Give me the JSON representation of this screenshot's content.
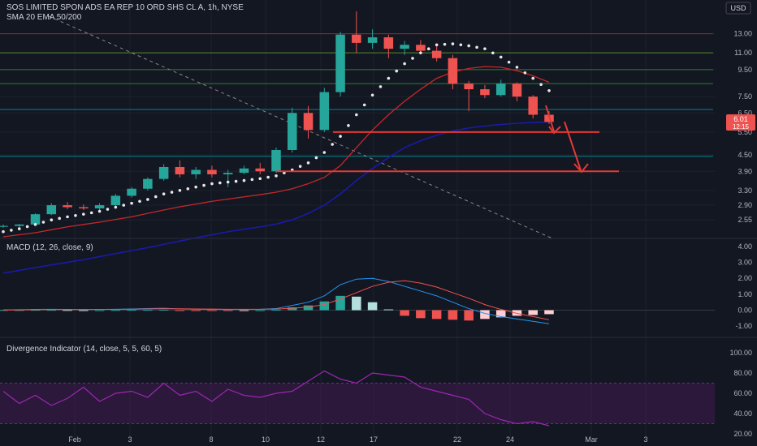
{
  "header": {
    "symbol_title": "SOS LIMITED SPON ADS EA REP 10 ORD SHS CL A, 1h, NYSE",
    "indicator_ma": "SMA 20 EMA 50/200",
    "currency": "USD"
  },
  "colors": {
    "background": "#131722",
    "up": "#26a69a",
    "down": "#ef5350",
    "sma20": "#e8e8e8",
    "ema50": "#c62828",
    "ema200": "#1a1aa8",
    "macd_line": "#2196f3",
    "signal_line": "#ef5350",
    "div_line": "#9c27b0",
    "div_band": "#4a1a5c",
    "grid": "#1e222d",
    "axis_text": "#b2b5be"
  },
  "price_badge": {
    "value": "6.01",
    "time": "12:15"
  },
  "chart_data": [
    {
      "type": "candlestick",
      "title": "SOS LIMITED SPON ADS EA REP 10 ORD SHS CL A, 1h, NYSE",
      "y_axis_ticks": [
        "13.00",
        "11.00",
        "9.50",
        "7.50",
        "6.50",
        "5.50",
        "4.50",
        "3.90",
        "3.30",
        "2.90",
        "2.55"
      ],
      "x_axis_ticks": [
        "Feb",
        "3",
        "8",
        "10",
        "12",
        "17",
        "22",
        "24",
        "Mar",
        "3"
      ],
      "ohlc_approx": [
        {
          "o": 2.4,
          "h": 2.45,
          "l": 2.38,
          "c": 2.42
        },
        {
          "o": 2.42,
          "h": 2.46,
          "l": 2.4,
          "c": 2.45
        },
        {
          "o": 2.45,
          "h": 2.7,
          "l": 2.44,
          "c": 2.68
        },
        {
          "o": 2.68,
          "h": 2.95,
          "l": 2.66,
          "c": 2.9
        },
        {
          "o": 2.9,
          "h": 2.98,
          "l": 2.8,
          "c": 2.85
        },
        {
          "o": 2.85,
          "h": 2.92,
          "l": 2.78,
          "c": 2.82
        },
        {
          "o": 2.82,
          "h": 2.95,
          "l": 2.75,
          "c": 2.9
        },
        {
          "o": 2.9,
          "h": 3.2,
          "l": 2.88,
          "c": 3.15
        },
        {
          "o": 3.15,
          "h": 3.4,
          "l": 3.1,
          "c": 3.35
        },
        {
          "o": 3.35,
          "h": 3.7,
          "l": 3.3,
          "c": 3.65
        },
        {
          "o": 3.65,
          "h": 4.15,
          "l": 3.6,
          "c": 4.05
        },
        {
          "o": 4.05,
          "h": 4.3,
          "l": 3.7,
          "c": 3.8
        },
        {
          "o": 3.8,
          "h": 4.05,
          "l": 3.65,
          "c": 3.95
        },
        {
          "o": 3.95,
          "h": 4.1,
          "l": 3.7,
          "c": 3.8
        },
        {
          "o": 3.8,
          "h": 3.95,
          "l": 3.4,
          "c": 3.85
        },
        {
          "o": 3.85,
          "h": 4.1,
          "l": 3.8,
          "c": 4.0
        },
        {
          "o": 4.0,
          "h": 4.2,
          "l": 3.8,
          "c": 3.9
        },
        {
          "o": 3.9,
          "h": 4.8,
          "l": 3.85,
          "c": 4.7
        },
        {
          "o": 4.7,
          "h": 6.8,
          "l": 4.6,
          "c": 6.5
        },
        {
          "o": 6.5,
          "h": 6.9,
          "l": 5.2,
          "c": 5.6
        },
        {
          "o": 5.6,
          "h": 8.1,
          "l": 5.5,
          "c": 7.8
        },
        {
          "o": 7.8,
          "h": 13.2,
          "l": 7.5,
          "c": 12.9
        },
        {
          "o": 12.9,
          "h": 15.8,
          "l": 11.0,
          "c": 12.0
        },
        {
          "o": 12.0,
          "h": 13.5,
          "l": 11.4,
          "c": 12.6
        },
        {
          "o": 12.6,
          "h": 12.9,
          "l": 10.5,
          "c": 11.4
        },
        {
          "o": 11.4,
          "h": 12.2,
          "l": 10.8,
          "c": 11.8
        },
        {
          "o": 11.8,
          "h": 12.3,
          "l": 10.9,
          "c": 11.2
        },
        {
          "o": 11.2,
          "h": 11.8,
          "l": 10.2,
          "c": 10.5
        },
        {
          "o": 10.5,
          "h": 10.8,
          "l": 8.0,
          "c": 8.4
        },
        {
          "o": 8.4,
          "h": 8.6,
          "l": 6.6,
          "c": 8.0
        },
        {
          "o": 8.0,
          "h": 8.3,
          "l": 7.4,
          "c": 7.6
        },
        {
          "o": 7.6,
          "h": 8.7,
          "l": 7.5,
          "c": 8.4
        },
        {
          "o": 8.4,
          "h": 8.5,
          "l": 7.2,
          "c": 7.5
        },
        {
          "o": 7.5,
          "h": 7.6,
          "l": 6.2,
          "c": 6.4
        },
        {
          "o": 6.4,
          "h": 6.6,
          "l": 5.9,
          "c": 6.01
        }
      ],
      "series": [
        {
          "name": "SMA 20",
          "values": [
            2.3,
            2.36,
            2.45,
            2.55,
            2.62,
            2.68,
            2.75,
            2.85,
            2.95,
            3.05,
            3.2,
            3.3,
            3.4,
            3.5,
            3.55,
            3.6,
            3.66,
            3.75,
            3.95,
            4.2,
            4.6,
            5.3,
            6.4,
            7.6,
            8.8,
            10.0,
            11.0,
            11.8,
            11.9,
            11.7,
            11.4,
            10.6,
            9.7,
            8.8,
            7.9
          ]
        },
        {
          "name": "EMA 50",
          "values": [
            2.2,
            2.24,
            2.28,
            2.34,
            2.4,
            2.45,
            2.5,
            2.56,
            2.62,
            2.7,
            2.78,
            2.86,
            2.93,
            3.0,
            3.06,
            3.12,
            3.18,
            3.25,
            3.35,
            3.5,
            3.7,
            4.1,
            4.8,
            5.6,
            6.4,
            7.2,
            8.0,
            8.8,
            9.3,
            9.6,
            9.75,
            9.7,
            9.4,
            9.0,
            8.5
          ]
        },
        {
          "name": "EMA 200",
          "values": [
            1.6,
            1.64,
            1.68,
            1.72,
            1.76,
            1.8,
            1.85,
            1.9,
            1.95,
            2.0,
            2.06,
            2.12,
            2.18,
            2.24,
            2.3,
            2.35,
            2.4,
            2.46,
            2.55,
            2.7,
            2.9,
            3.2,
            3.6,
            4.0,
            4.4,
            4.8,
            5.1,
            5.35,
            5.55,
            5.7,
            5.8,
            5.88,
            5.94,
            5.98,
            6.01
          ]
        }
      ],
      "horizontal_levels": [
        13.0,
        11.0,
        9.5,
        8.4,
        6.7,
        4.45
      ],
      "support_lines": [
        5.5,
        3.9
      ]
    },
    {
      "type": "line",
      "title": "MACD (12, 26, close, 9)",
      "y_axis_ticks": [
        "4.00",
        "3.00",
        "2.00",
        "1.00",
        "0.00",
        "-1.00"
      ],
      "series": [
        {
          "name": "MACD",
          "values": [
            0.02,
            0.03,
            0.05,
            0.06,
            0.05,
            0.04,
            0.05,
            0.06,
            0.08,
            0.1,
            0.12,
            0.08,
            0.06,
            0.05,
            0.04,
            0.05,
            0.06,
            0.1,
            0.3,
            0.5,
            0.9,
            1.6,
            1.95,
            2.0,
            1.8,
            1.5,
            1.2,
            0.9,
            0.5,
            0.1,
            -0.2,
            -0.4,
            -0.55,
            -0.7,
            -0.85
          ]
        },
        {
          "name": "Signal",
          "values": [
            0.01,
            0.02,
            0.03,
            0.04,
            0.04,
            0.04,
            0.05,
            0.05,
            0.06,
            0.08,
            0.09,
            0.09,
            0.08,
            0.07,
            0.06,
            0.06,
            0.06,
            0.07,
            0.12,
            0.2,
            0.35,
            0.7,
            1.1,
            1.5,
            1.75,
            1.85,
            1.7,
            1.45,
            1.1,
            0.75,
            0.35,
            0.05,
            -0.2,
            -0.4,
            -0.6
          ]
        },
        {
          "name": "Histogram",
          "values": [
            0.01,
            0.01,
            0.02,
            0.02,
            0.01,
            0.0,
            0.0,
            0.01,
            0.02,
            0.02,
            0.03,
            -0.01,
            -0.02,
            -0.02,
            -0.02,
            -0.01,
            0.0,
            0.03,
            0.18,
            0.3,
            0.55,
            0.9,
            0.85,
            0.5,
            0.05,
            -0.35,
            -0.5,
            -0.55,
            -0.6,
            -0.65,
            -0.55,
            -0.45,
            -0.35,
            -0.3,
            -0.25
          ]
        }
      ]
    },
    {
      "type": "line",
      "title": "Divergence Indicator (14, close, 5, 5, 60, 5)",
      "y_axis_ticks": [
        "100.00",
        "80.00",
        "60.00",
        "40.00",
        "20.00"
      ],
      "bands": [
        30,
        70
      ],
      "series": [
        {
          "name": "Divergence Indicator",
          "values": [
            62,
            50,
            58,
            48,
            55,
            66,
            52,
            60,
            62,
            56,
            70,
            58,
            62,
            52,
            64,
            58,
            56,
            60,
            62,
            72,
            82,
            74,
            70,
            80,
            78,
            76,
            66,
            62,
            58,
            54,
            40,
            34,
            30,
            32,
            28
          ]
        }
      ]
    }
  ]
}
